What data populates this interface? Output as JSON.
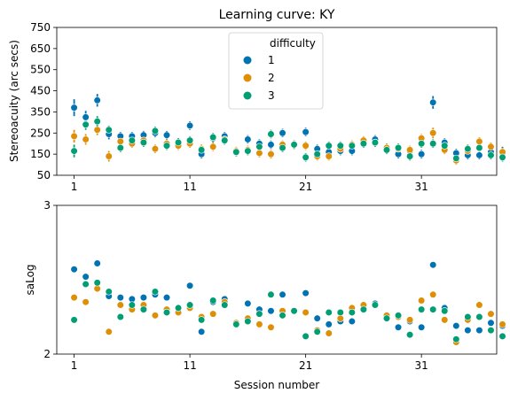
{
  "colors": {
    "d1": "#0173b2",
    "d2": "#de8f05",
    "d3": "#029e73"
  },
  "chart_data": [
    {
      "type": "scatter",
      "title": "Learning curve: KY",
      "xlabel": "",
      "ylabel": "Stereoacuity (arc secs)",
      "xlim": [
        -0.5,
        37.5
      ],
      "ylim": [
        50,
        750
      ],
      "xticks": [
        1,
        11,
        21,
        31
      ],
      "xtick_labels": [
        "1",
        "11",
        "21",
        "31"
      ],
      "yticks": [
        50,
        150,
        250,
        350,
        450,
        550,
        650,
        750
      ],
      "ytick_labels": [
        "50",
        "150",
        "250",
        "350",
        "450",
        "550",
        "650",
        "750"
      ],
      "error_bars": true,
      "legend": {
        "title": "difficulty",
        "position": "top-center",
        "entries": [
          {
            "label": "1",
            "series": "difficulty 1"
          },
          {
            "label": "2",
            "series": "difficulty 2"
          },
          {
            "label": "3",
            "series": "difficulty 3"
          }
        ]
      },
      "x": [
        1,
        2,
        3,
        4,
        5,
        6,
        7,
        8,
        9,
        10,
        11,
        12,
        13,
        14,
        15,
        16,
        17,
        18,
        19,
        20,
        21,
        22,
        23,
        24,
        25,
        26,
        27,
        28,
        29,
        30,
        31,
        32,
        33,
        34,
        35,
        36,
        37,
        38
      ],
      "series": [
        {
          "name": "difficulty 1",
          "color_key": "d1",
          "values": [
            370,
            325,
            405,
            245,
            235,
            235,
            240,
            250,
            240,
            205,
            285,
            150,
            225,
            235,
            160,
            220,
            200,
            195,
            250,
            195,
            255,
            175,
            160,
            165,
            165,
            200,
            220,
            180,
            150,
            165,
            150,
            395,
            205,
            155,
            145,
            145,
            160,
            155
          ],
          "err": [
            40,
            30,
            30,
            25,
            20,
            20,
            20,
            20,
            20,
            20,
            20,
            20,
            20,
            20,
            20,
            20,
            20,
            20,
            20,
            20,
            20,
            20,
            20,
            20,
            20,
            20,
            20,
            20,
            20,
            20,
            20,
            30,
            20,
            20,
            20,
            20,
            20,
            30
          ]
        },
        {
          "name": "difficulty 2",
          "color_key": "d2",
          "values": [
            235,
            220,
            265,
            140,
            210,
            200,
            215,
            175,
            200,
            190,
            200,
            175,
            185,
            220,
            165,
            170,
            155,
            150,
            195,
            195,
            190,
            140,
            140,
            175,
            195,
            215,
            205,
            180,
            175,
            170,
            225,
            250,
            170,
            120,
            165,
            210,
            185,
            160
          ],
          "err": [
            30,
            25,
            25,
            25,
            20,
            20,
            20,
            20,
            20,
            20,
            20,
            20,
            20,
            20,
            20,
            20,
            20,
            20,
            20,
            20,
            20,
            20,
            20,
            20,
            20,
            20,
            20,
            20,
            20,
            20,
            20,
            25,
            20,
            20,
            20,
            20,
            20,
            20
          ]
        },
        {
          "name": "difficulty 3",
          "color_key": "d3",
          "values": [
            165,
            290,
            305,
            265,
            180,
            215,
            205,
            260,
            190,
            205,
            215,
            170,
            230,
            215,
            160,
            165,
            185,
            245,
            180,
            195,
            135,
            150,
            190,
            190,
            190,
            200,
            205,
            170,
            180,
            140,
            200,
            200,
            190,
            130,
            175,
            180,
            145,
            135
          ],
          "err": [
            30,
            25,
            25,
            20,
            20,
            20,
            20,
            20,
            20,
            20,
            20,
            20,
            20,
            20,
            20,
            20,
            20,
            20,
            20,
            20,
            20,
            20,
            20,
            20,
            20,
            20,
            20,
            20,
            20,
            20,
            20,
            20,
            20,
            20,
            20,
            20,
            20,
            20
          ]
        }
      ]
    },
    {
      "type": "scatter",
      "title": "",
      "xlabel": "Session number",
      "ylabel": "saLog",
      "xlim": [
        -0.5,
        37.5
      ],
      "ylim": [
        2,
        3
      ],
      "xticks": [
        1,
        11,
        21,
        31
      ],
      "xtick_labels": [
        "1",
        "11",
        "21",
        "31"
      ],
      "yticks": [
        2,
        3
      ],
      "ytick_labels": [
        "2",
        "3"
      ],
      "x": [
        1,
        2,
        3,
        4,
        5,
        6,
        7,
        8,
        9,
        10,
        11,
        12,
        13,
        14,
        15,
        16,
        17,
        18,
        19,
        20,
        21,
        22,
        23,
        24,
        25,
        26,
        27,
        28,
        29,
        30,
        31,
        32,
        33,
        34,
        35,
        36,
        37,
        38
      ],
      "series": [
        {
          "name": "difficulty 1",
          "color_key": "d1",
          "values": [
            2.57,
            2.52,
            2.61,
            2.39,
            2.38,
            2.37,
            2.38,
            2.4,
            2.38,
            2.31,
            2.46,
            2.15,
            2.35,
            2.37,
            2.2,
            2.34,
            2.3,
            2.29,
            2.4,
            2.29,
            2.41,
            2.24,
            2.2,
            2.22,
            2.22,
            2.3,
            2.34,
            2.26,
            2.18,
            2.22,
            2.18,
            2.6,
            2.31,
            2.19,
            2.16,
            2.16,
            2.21,
            2.19
          ]
        },
        {
          "name": "difficulty 2",
          "color_key": "d2",
          "values": [
            2.38,
            2.35,
            2.44,
            2.15,
            2.33,
            2.3,
            2.33,
            2.26,
            2.3,
            2.28,
            2.31,
            2.25,
            2.27,
            2.35,
            2.21,
            2.24,
            2.2,
            2.18,
            2.29,
            2.29,
            2.28,
            2.16,
            2.14,
            2.24,
            2.31,
            2.33,
            2.33,
            2.26,
            2.25,
            2.23,
            2.36,
            2.4,
            2.23,
            2.08,
            2.23,
            2.33,
            2.27,
            2.2
          ]
        },
        {
          "name": "difficulty 3",
          "color_key": "d3",
          "values": [
            2.23,
            2.47,
            2.48,
            2.42,
            2.25,
            2.33,
            2.3,
            2.42,
            2.28,
            2.31,
            2.33,
            2.23,
            2.36,
            2.33,
            2.2,
            2.22,
            2.27,
            2.4,
            2.26,
            2.29,
            2.12,
            2.15,
            2.28,
            2.28,
            2.28,
            2.3,
            2.33,
            2.24,
            2.26,
            2.13,
            2.3,
            2.3,
            2.29,
            2.1,
            2.25,
            2.25,
            2.16,
            2.12
          ]
        }
      ]
    }
  ]
}
